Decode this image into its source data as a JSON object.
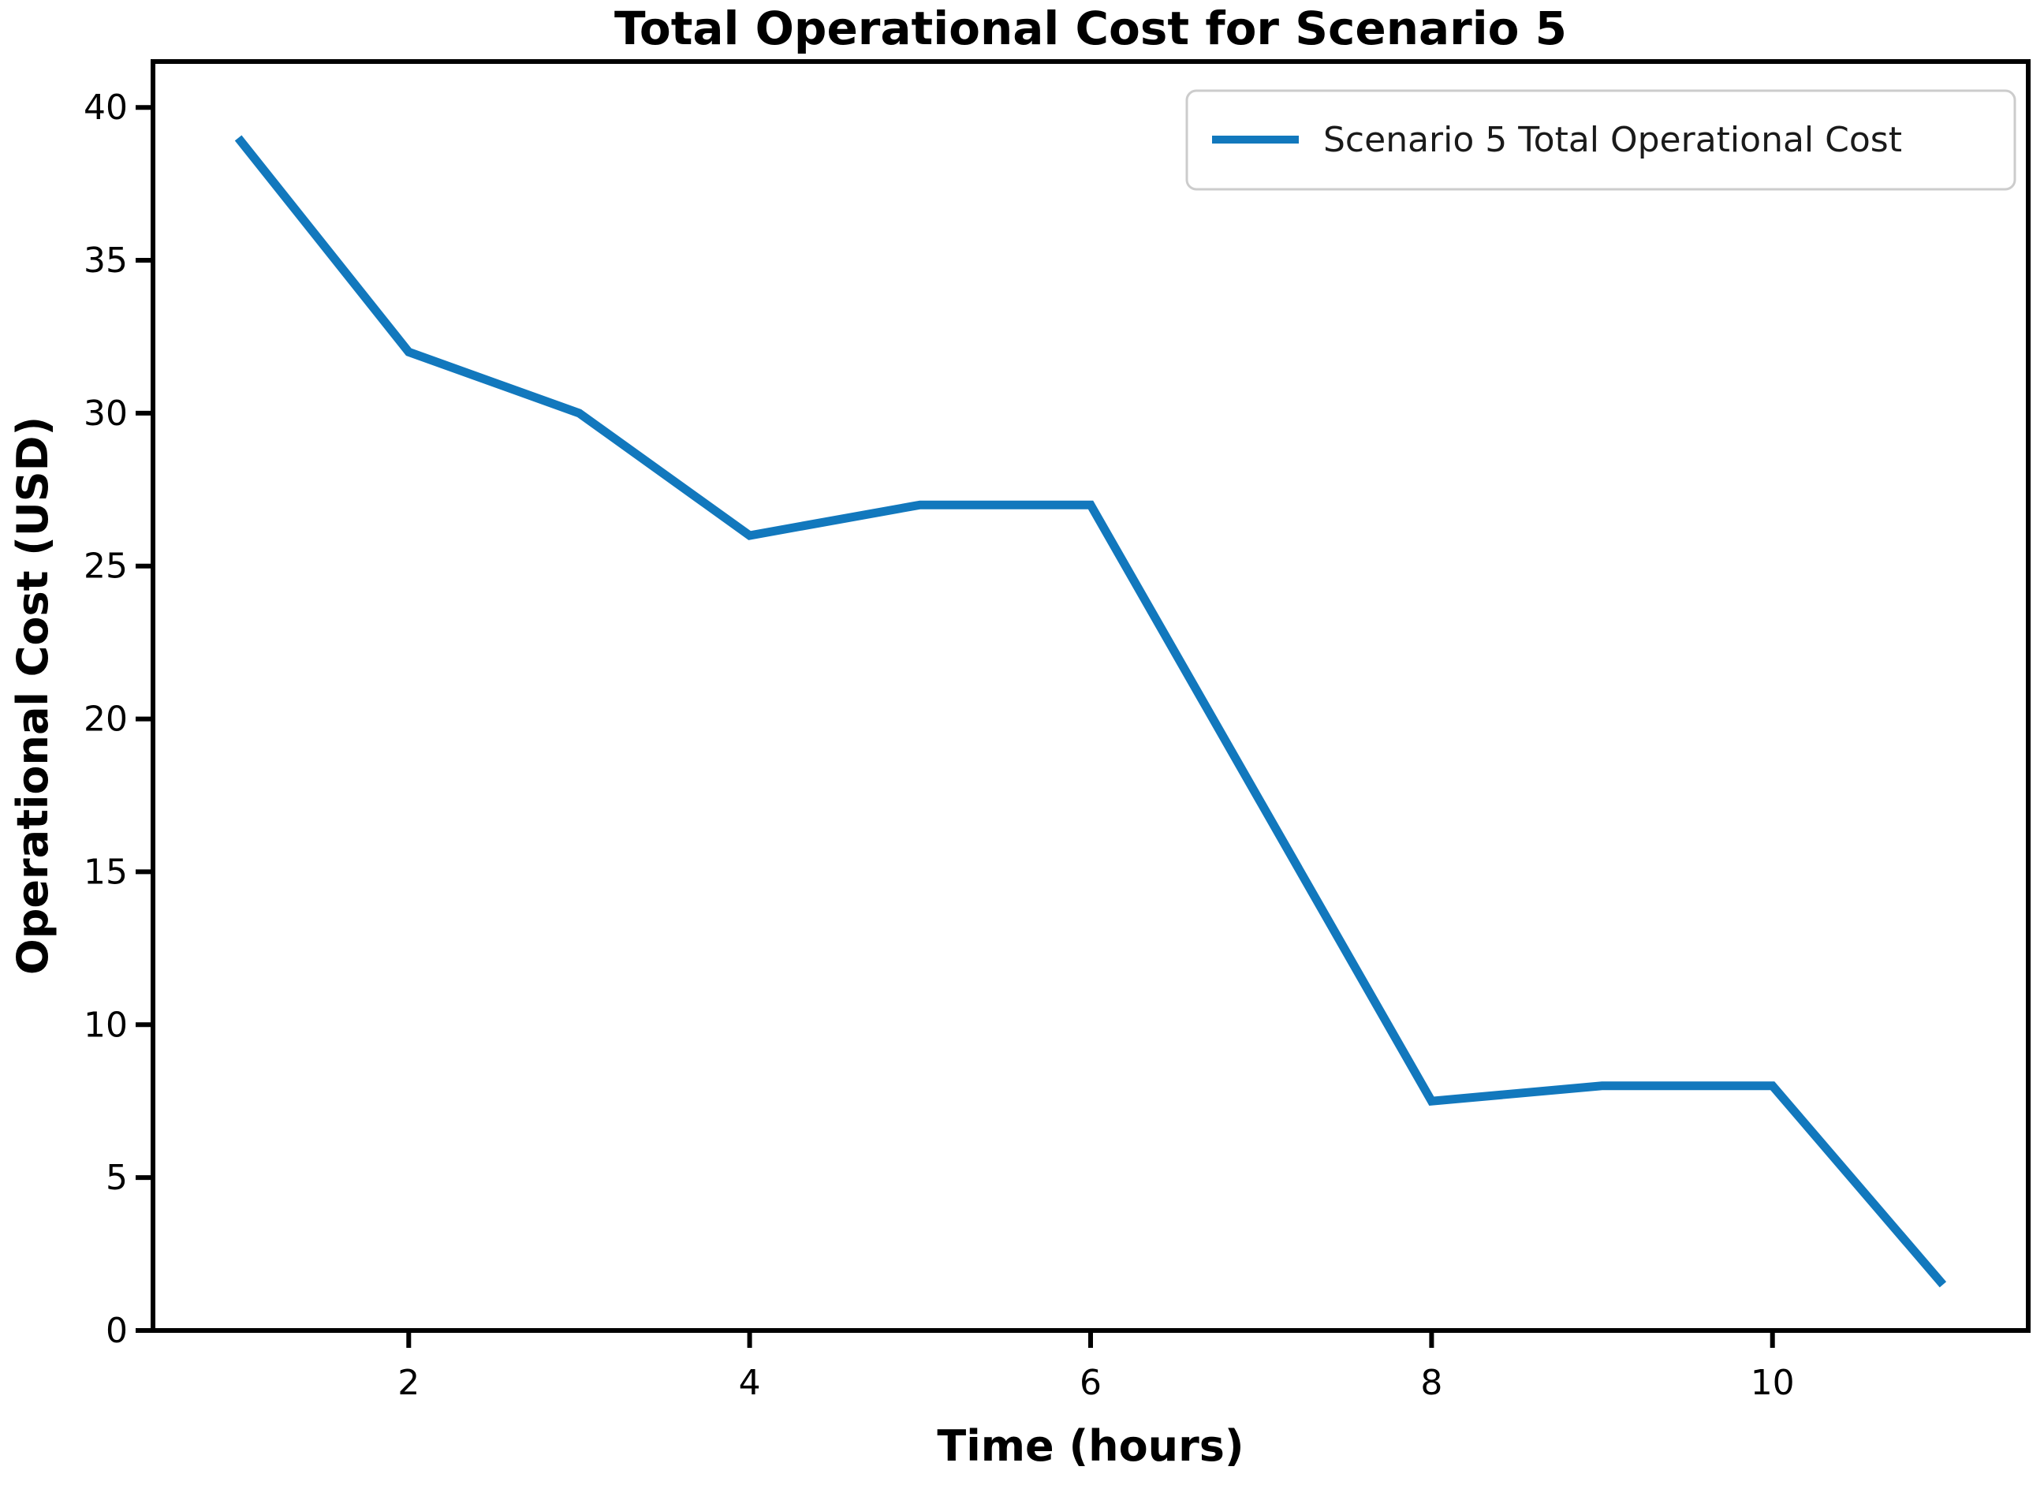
{
  "figure": {
    "title": "Total Operational Cost for Scenario 5"
  },
  "chart_data": {
    "type": "line",
    "title": "Total Operational Cost for Scenario 5",
    "xlabel": "Time (hours)",
    "ylabel": "Operational Cost (USD)",
    "x": [
      1,
      2,
      3,
      4,
      5,
      6,
      7,
      8,
      9,
      10,
      11
    ],
    "series": [
      {
        "name": "Scenario 5 Total Operational Cost",
        "values": [
          39,
          32,
          30,
          26,
          27,
          27,
          17.25,
          7.5,
          8,
          8,
          1.5
        ],
        "color": "#1278bd"
      }
    ],
    "xlim": [
      0.5,
      11.5
    ],
    "ylim": [
      0,
      41.5
    ],
    "xticks": [
      2,
      4,
      6,
      8,
      10
    ],
    "yticks": [
      0,
      5,
      10,
      15,
      20,
      25,
      30,
      35,
      40
    ],
    "grid": false,
    "legend_position": "upper right",
    "colors": {
      "line": "#1278bd",
      "legend_border": "#cccccc",
      "axis": "#000000"
    }
  }
}
